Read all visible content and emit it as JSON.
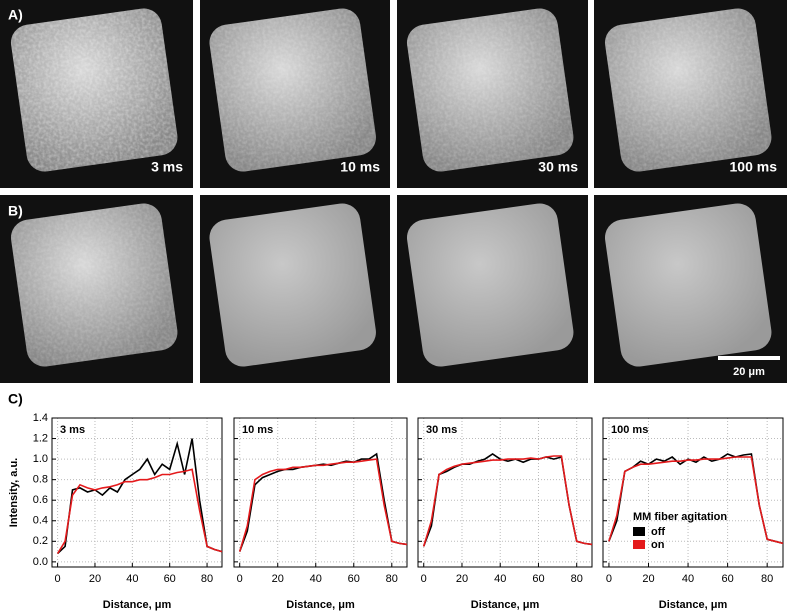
{
  "panels": {
    "A": {
      "label": "A)",
      "images": [
        "3 ms",
        "10 ms",
        "30 ms",
        "100 ms"
      ]
    },
    "B": {
      "label": "B)",
      "scale_bar": "20 μm"
    },
    "C": {
      "label": "C)"
    }
  },
  "chart_data": [
    {
      "type": "line",
      "title": "3 ms",
      "xlabel": "Distance, μm",
      "ylabel": "Intensity, a.u.",
      "grid": true,
      "ytick_labels": true,
      "xlim": [
        -3,
        88
      ],
      "ylim": [
        -0.05,
        1.4
      ],
      "xticks": [
        0,
        20,
        40,
        60,
        80
      ],
      "yticks": [
        {
          "value": 0,
          "label": "0.0"
        },
        0.2,
        0.4,
        0.6,
        0.8,
        {
          "value": 1,
          "label": "1.0"
        },
        1.2,
        1.4
      ],
      "x": [
        0,
        4,
        8,
        12,
        16,
        20,
        24,
        28,
        32,
        36,
        40,
        44,
        48,
        52,
        56,
        60,
        64,
        68,
        72,
        76,
        80,
        84,
        88
      ],
      "series": [
        {
          "color": "#000000",
          "values": [
            0.08,
            0.15,
            0.7,
            0.72,
            0.68,
            0.7,
            0.65,
            0.72,
            0.68,
            0.8,
            0.85,
            0.9,
            1.0,
            0.85,
            0.95,
            0.9,
            1.15,
            0.85,
            1.2,
            0.6,
            0.15,
            0.12,
            0.1
          ]
        },
        {
          "color": "#e41a1c",
          "values": [
            0.08,
            0.2,
            0.65,
            0.75,
            0.72,
            0.7,
            0.72,
            0.73,
            0.75,
            0.78,
            0.78,
            0.8,
            0.8,
            0.82,
            0.85,
            0.85,
            0.87,
            0.88,
            0.9,
            0.5,
            0.15,
            0.12,
            0.1
          ]
        }
      ]
    },
    {
      "type": "line",
      "title": "10 ms",
      "xlabel": "Distance, μm",
      "grid": true,
      "ytick_labels": false,
      "xlim": [
        -3,
        88
      ],
      "ylim": [
        -0.05,
        1.4
      ],
      "xticks": [
        0,
        20,
        40,
        60,
        80
      ],
      "yticks": [
        {
          "value": 0,
          "label": "0.0"
        },
        0.2,
        0.4,
        0.6,
        0.8,
        {
          "value": 1,
          "label": "1.0"
        },
        1.2,
        1.4
      ],
      "x": [
        0,
        4,
        8,
        12,
        16,
        20,
        24,
        28,
        32,
        36,
        40,
        44,
        48,
        52,
        56,
        60,
        64,
        68,
        72,
        76,
        80,
        84,
        88
      ],
      "series": [
        {
          "color": "#000000",
          "values": [
            0.1,
            0.3,
            0.75,
            0.82,
            0.85,
            0.88,
            0.9,
            0.9,
            0.92,
            0.93,
            0.94,
            0.95,
            0.94,
            0.96,
            0.98,
            0.97,
            1.0,
            1.0,
            1.05,
            0.6,
            0.2,
            0.18,
            0.17
          ]
        },
        {
          "color": "#e41a1c",
          "values": [
            0.1,
            0.35,
            0.8,
            0.85,
            0.88,
            0.9,
            0.9,
            0.92,
            0.92,
            0.93,
            0.94,
            0.94,
            0.95,
            0.96,
            0.97,
            0.97,
            0.98,
            0.99,
            1.0,
            0.55,
            0.2,
            0.18,
            0.17
          ]
        }
      ]
    },
    {
      "type": "line",
      "title": "30 ms",
      "xlabel": "Distance, μm",
      "grid": true,
      "ytick_labels": false,
      "xlim": [
        -3,
        88
      ],
      "ylim": [
        -0.05,
        1.4
      ],
      "xticks": [
        0,
        20,
        40,
        60,
        80
      ],
      "yticks": [
        {
          "value": 0,
          "label": "0.0"
        },
        0.2,
        0.4,
        0.6,
        0.8,
        {
          "value": 1,
          "label": "1.0"
        },
        1.2,
        1.4
      ],
      "x": [
        0,
        4,
        8,
        12,
        16,
        20,
        24,
        28,
        32,
        36,
        40,
        44,
        48,
        52,
        56,
        60,
        64,
        68,
        72,
        76,
        80,
        84,
        88
      ],
      "series": [
        {
          "color": "#000000",
          "values": [
            0.15,
            0.35,
            0.85,
            0.88,
            0.92,
            0.95,
            0.95,
            0.98,
            1.0,
            1.05,
            1.0,
            0.98,
            1.0,
            0.97,
            1.0,
            1.0,
            1.02,
            1.0,
            1.02,
            0.55,
            0.2,
            0.18,
            0.17
          ]
        },
        {
          "color": "#e41a1c",
          "values": [
            0.15,
            0.4,
            0.85,
            0.9,
            0.93,
            0.95,
            0.96,
            0.97,
            0.98,
            0.99,
            0.99,
            1.0,
            1.0,
            1.0,
            1.01,
            1.0,
            1.02,
            1.03,
            1.03,
            0.55,
            0.2,
            0.18,
            0.17
          ]
        }
      ]
    },
    {
      "type": "line",
      "title": "100 ms",
      "xlabel": "Distance, μm",
      "grid": true,
      "ytick_labels": false,
      "xlim": [
        -3,
        88
      ],
      "ylim": [
        -0.05,
        1.4
      ],
      "xticks": [
        0,
        20,
        40,
        60,
        80
      ],
      "yticks": [
        {
          "value": 0,
          "label": "0.0"
        },
        0.2,
        0.4,
        0.6,
        0.8,
        {
          "value": 1,
          "label": "1.0"
        },
        1.2,
        1.4
      ],
      "legend_title": "MM fiber agitation",
      "legend": "lower-right",
      "x": [
        0,
        4,
        8,
        12,
        16,
        20,
        24,
        28,
        32,
        36,
        40,
        44,
        48,
        52,
        56,
        60,
        64,
        68,
        72,
        76,
        80,
        84,
        88
      ],
      "series": [
        {
          "name": "off",
          "color": "#000000",
          "values": [
            0.2,
            0.4,
            0.88,
            0.92,
            0.98,
            0.95,
            1.0,
            0.98,
            1.02,
            0.95,
            1.0,
            0.97,
            1.02,
            0.98,
            1.0,
            1.05,
            1.02,
            1.04,
            1.05,
            0.55,
            0.22,
            0.2,
            0.18
          ]
        },
        {
          "name": "on",
          "color": "#e41a1c",
          "values": [
            0.2,
            0.45,
            0.88,
            0.92,
            0.95,
            0.95,
            0.96,
            0.97,
            0.98,
            0.98,
            0.99,
            0.99,
            1.0,
            1.0,
            1.0,
            1.01,
            1.02,
            1.02,
            1.02,
            0.55,
            0.22,
            0.2,
            0.18
          ]
        }
      ]
    }
  ]
}
